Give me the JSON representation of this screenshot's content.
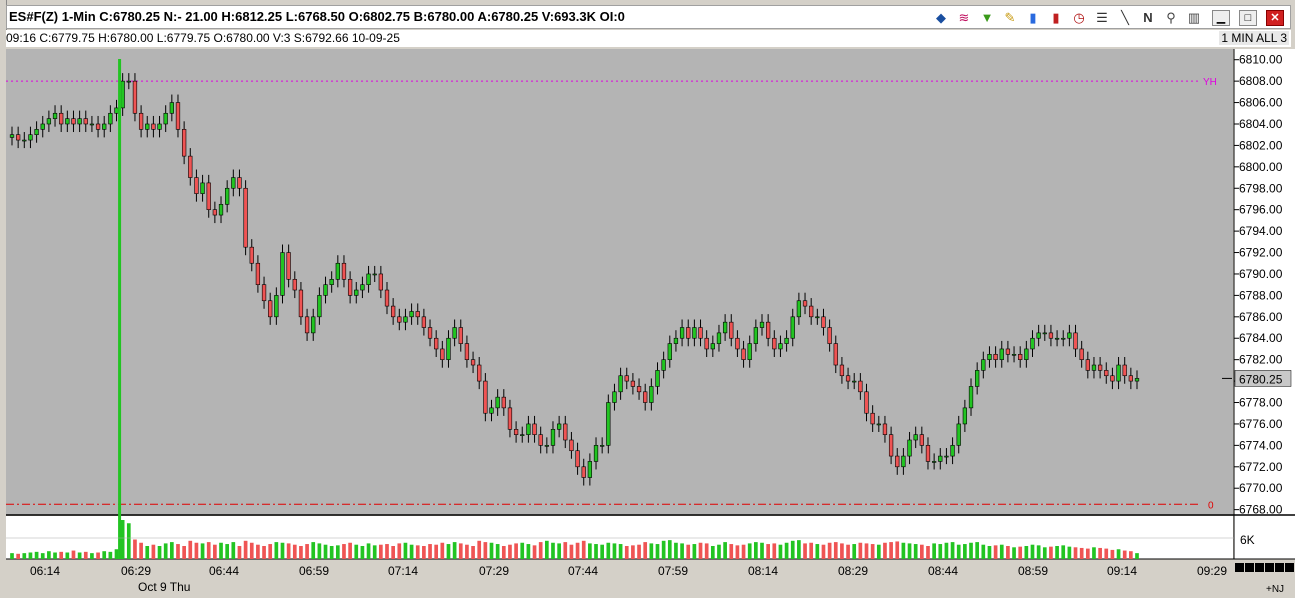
{
  "window": {
    "title": "ES#F(Z)  1-Min  C:6780.25  N:- 21.00  H:6812.25  L:6768.50  O:6802.75  B:6780.00  A:6780.25  V:693.3K  OI:0"
  },
  "toolbar": {
    "icons": [
      "layers-icon",
      "wave-icon",
      "funnel-icon",
      "pencil-icon",
      "bar-chart-icon",
      "candle-icon",
      "clock-icon",
      "list-icon",
      "line-tool-icon",
      "n-icon",
      "zoom-icon",
      "trash-icon"
    ],
    "n_label": "N"
  },
  "info_bar": {
    "text": "09:16  C:6779.75  H:6780.00  L:6779.75  O:6780.00  V:3  S:6792.66  10-09-25",
    "period": "1 MIN ALL 3"
  },
  "colors": {
    "plot_bg": "#b4b4b4",
    "up": "#22c422",
    "down": "#ef5454",
    "yh_line": "#e000e0",
    "zero_line": "#e00000"
  },
  "chart_data": {
    "type": "candlestick",
    "symbol": "ES#F(Z)",
    "interval": "1-Min",
    "ylim": [
      6767.5,
      6811
    ],
    "y_ticks": [
      6768,
      6770,
      6772,
      6774,
      6776,
      6778,
      6780,
      6782,
      6784,
      6786,
      6788,
      6790,
      6792,
      6794,
      6796,
      6798,
      6800,
      6802,
      6804,
      6806,
      6808,
      6810
    ],
    "y_tick_labels": [
      "6768.00",
      "6770.00",
      "6772.00",
      "6774.00",
      "6776.00",
      "6778.00",
      "6780.00",
      "6782.00",
      "6784.00",
      "6786.00",
      "6788.00",
      "6790.00",
      "6792.00",
      "6794.00",
      "6796.00",
      "6798.00",
      "6800.00",
      "6802.00",
      "6804.00",
      "6806.00",
      "6808.00",
      "6810.00"
    ],
    "last_price": "6780.25",
    "yh_level": 6808,
    "yh_label": "YH",
    "zero_level": 6768.5,
    "zero_label": "0",
    "volume_label": "6K",
    "x_labels": [
      "06:14",
      "06:29",
      "06:44",
      "06:59",
      "07:14",
      "07:29",
      "07:44",
      "07:59",
      "08:14",
      "08:29",
      "08:44",
      "08:59",
      "09:14",
      "09:29"
    ],
    "date_label": "Oct 9 Thu",
    "corner_label": "+NJ",
    "open_price": 6802.75,
    "closes": [
      6803.0,
      6802.5,
      6802.5,
      6803.0,
      6803.5,
      6804.0,
      6804.5,
      6805.0,
      6804.0,
      6804.5,
      6804.0,
      6804.5,
      6804.0,
      6804.0,
      6803.5,
      6804.0,
      6805.0,
      6805.5,
      6808.0,
      6808.0,
      6805.0,
      6803.5,
      6804.0,
      6803.5,
      6804.0,
      6805.0,
      6806.0,
      6803.5,
      6801.0,
      6799.0,
      6797.5,
      6798.5,
      6796.0,
      6795.5,
      6796.5,
      6798.0,
      6799.0,
      6798.0,
      6792.5,
      6791.0,
      6789.0,
      6787.5,
      6786.0,
      6788.0,
      6792.0,
      6789.5,
      6788.5,
      6786.0,
      6784.5,
      6786.0,
      6788.0,
      6789.0,
      6789.5,
      6791.0,
      6789.5,
      6788.0,
      6788.5,
      6789.0,
      6790.0,
      6790.0,
      6788.5,
      6787.0,
      6786.0,
      6785.5,
      6786.0,
      6786.5,
      6786.0,
      6785.0,
      6784.0,
      6783.0,
      6782.0,
      6784.0,
      6785.0,
      6783.5,
      6782.0,
      6781.5,
      6780.0,
      6777.0,
      6777.5,
      6778.5,
      6777.5,
      6775.5,
      6775.0,
      6775.0,
      6776.0,
      6775.0,
      6774.0,
      6774.0,
      6775.5,
      6776.0,
      6774.5,
      6773.5,
      6772.0,
      6771.0,
      6772.5,
      6774.0,
      6774.0,
      6778.0,
      6779.0,
      6780.5,
      6780.0,
      6779.5,
      6779.0,
      6778.0,
      6779.5,
      6781.0,
      6782.0,
      6783.5,
      6784.0,
      6785.0,
      6784.0,
      6785.0,
      6784.0,
      6783.0,
      6783.5,
      6784.5,
      6785.5,
      6784.0,
      6783.0,
      6782.0,
      6783.5,
      6785.0,
      6785.5,
      6784.0,
      6783.0,
      6783.5,
      6784.0,
      6786.0,
      6787.5,
      6787.0,
      6786.0,
      6786.0,
      6785.0,
      6783.5,
      6781.5,
      6780.5,
      6780.0,
      6780.0,
      6779.0,
      6777.0,
      6776.0,
      6776.0,
      6775.0,
      6773.0,
      6772.0,
      6773.0,
      6774.5,
      6775.0,
      6774.0,
      6772.5,
      6772.5,
      6773.0,
      6773.0,
      6774.0,
      6776.0,
      6777.5,
      6779.5,
      6781.0,
      6782.0,
      6782.5,
      6782.0,
      6783.0,
      6782.5,
      6782.5,
      6782.0,
      6783.0,
      6784.0,
      6784.5,
      6784.5,
      6784.0,
      6784.0,
      6784.0,
      6784.5,
      6783.0,
      6782.0,
      6781.0,
      6781.5,
      6781.0,
      6780.5,
      6780.0,
      6781.5,
      6780.5,
      6780.0,
      6780.25
    ],
    "volumes": [
      0.9,
      0.8,
      0.9,
      1.0,
      1.1,
      0.9,
      1.2,
      1.0,
      1.1,
      1.0,
      1.3,
      1.0,
      1.1,
      0.9,
      1.0,
      1.2,
      1.1,
      1.5,
      6.0,
      5.5,
      3.0,
      2.5,
      2.0,
      2.2,
      2.0,
      2.4,
      2.6,
      2.3,
      2.0,
      2.8,
      2.5,
      2.4,
      2.6,
      2.2,
      2.5,
      2.3,
      2.6,
      2.0,
      2.8,
      2.5,
      2.2,
      2.0,
      2.3,
      2.6,
      2.5,
      2.4,
      2.2,
      2.0,
      2.3,
      2.6,
      2.4,
      2.2,
      2.0,
      2.1,
      2.3,
      2.5,
      2.2,
      2.0,
      2.4,
      2.1,
      2.2,
      2.3,
      2.0,
      2.4,
      2.5,
      2.2,
      2.1,
      2.0,
      2.3,
      2.2,
      2.5,
      2.3,
      2.6,
      2.4,
      2.2,
      2.0,
      2.8,
      2.6,
      2.5,
      2.3,
      2.0,
      2.2,
      2.4,
      2.5,
      2.3,
      2.1,
      2.6,
      2.8,
      2.5,
      2.4,
      2.6,
      2.2,
      2.5,
      2.8,
      2.4,
      2.3,
      2.2,
      2.5,
      2.4,
      2.3,
      2.0,
      2.1,
      2.2,
      2.6,
      2.4,
      2.3,
      2.8,
      2.9,
      2.5,
      2.4,
      2.2,
      2.3,
      2.5,
      2.4,
      2.0,
      2.2,
      2.6,
      2.3,
      2.1,
      2.2,
      2.4,
      2.6,
      2.5,
      2.3,
      2.4,
      2.2,
      2.5,
      2.8,
      2.9,
      2.4,
      2.5,
      2.3,
      2.2,
      2.5,
      2.6,
      2.4,
      2.2,
      2.3,
      2.5,
      2.4,
      2.3,
      2.2,
      2.5,
      2.6,
      2.7,
      2.5,
      2.4,
      2.3,
      2.2,
      2.0,
      2.4,
      2.3,
      2.5,
      2.6,
      2.2,
      2.3,
      2.5,
      2.6,
      2.2,
      2.0,
      2.1,
      2.2,
      2.0,
      1.8,
      1.9,
      2.0,
      2.2,
      2.1,
      1.8,
      1.9,
      2.0,
      2.1,
      1.9,
      1.8,
      1.7,
      1.6,
      1.8,
      1.7,
      1.6,
      1.4,
      1.5,
      1.3,
      1.2,
      0.9,
      0.4
    ]
  }
}
